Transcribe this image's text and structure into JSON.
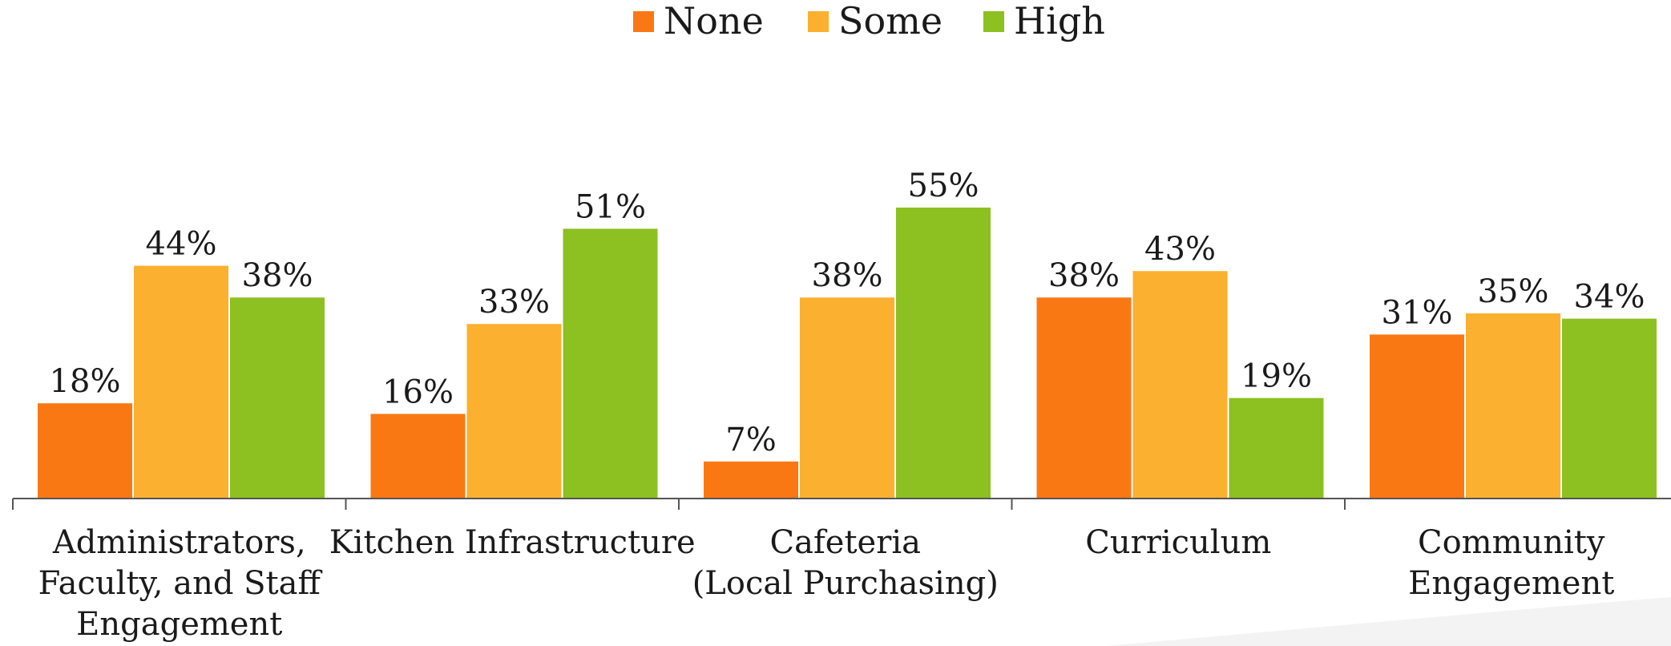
{
  "chart_data": {
    "type": "bar",
    "title": "",
    "xlabel": "",
    "ylabel": "",
    "ylim": [
      0,
      60
    ],
    "grid": false,
    "legend_position": "top-center",
    "categories": [
      [
        "Administrators,",
        "Faculty, and Staff",
        "Engagement"
      ],
      [
        "Kitchen Infrastructure"
      ],
      [
        "Cafeteria",
        "(Local Purchasing)"
      ],
      [
        "Curriculum"
      ],
      [
        "Community",
        "Engagement"
      ]
    ],
    "series": [
      {
        "name": "None",
        "color": "#fa7814",
        "values": [
          18,
          16,
          7,
          38,
          31
        ],
        "labels": [
          "18%",
          "16%",
          "7%",
          "38%",
          "31%"
        ]
      },
      {
        "name": "Some",
        "color": "#fbb030",
        "values": [
          44,
          33,
          38,
          43,
          35
        ],
        "labels": [
          "44%",
          "33%",
          "38%",
          "43%",
          "35%"
        ]
      },
      {
        "name": "High",
        "color": "#8dc021",
        "values": [
          38,
          51,
          55,
          19,
          34
        ],
        "labels": [
          "38%",
          "51%",
          "55%",
          "19%",
          "34%"
        ]
      }
    ]
  }
}
